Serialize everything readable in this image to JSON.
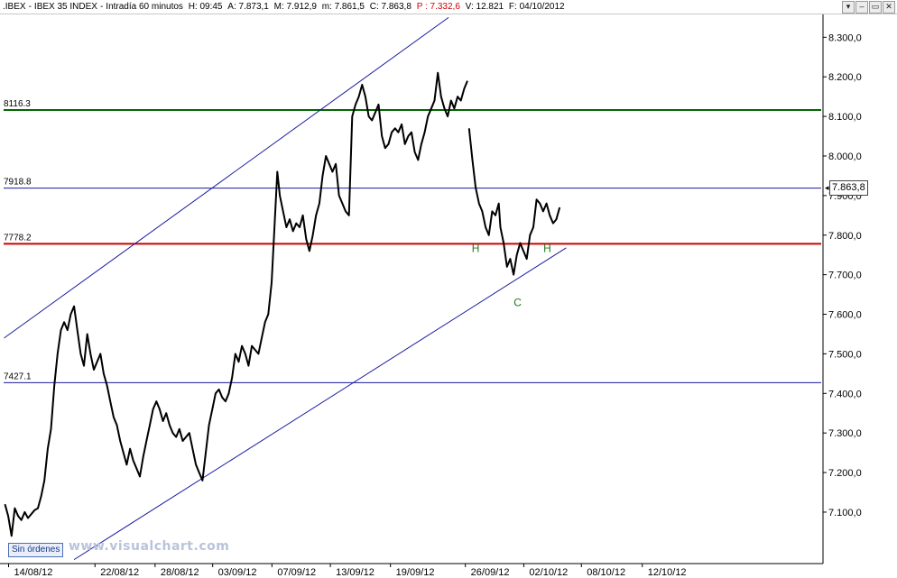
{
  "infobar": {
    "symbol": ".IBEX",
    "sep": "-",
    "name": "IBEX 35 INDEX",
    "sep2": "-",
    "timeframe": "Intradía 60 minutos",
    "hour": "H: 09:45",
    "open": "A: 7.873,1",
    "high": "M: 7.912,9",
    "low": "m: 7.861,5",
    "close": "C: 7.863,8",
    "prev": "P : 7.332,6",
    "volume": "V: 12.821",
    "date": "F: 04/10/2012"
  },
  "window_buttons": [
    "▾",
    "–",
    "▭",
    "✕"
  ],
  "orders_label": "Sin órdenes",
  "watermark": "www.visualchart.com",
  "last_price_label": "7.863,8",
  "colors": {
    "price": "#000000",
    "channel": "#1a1aa0",
    "support_7778": "#cc0000",
    "resistance_8116": "#006600",
    "level_blue": "#1a1aa0",
    "pattern_labels": "#1d7a1d"
  },
  "chart_data": {
    "type": "line",
    "title": "IBEX 35 INDEX - Intradía 60 minutos",
    "xlabel": "",
    "ylabel": "",
    "ylim": [
      6970,
      8360
    ],
    "y_ticks": [
      7100,
      7200,
      7300,
      7400,
      7500,
      7600,
      7700,
      7800,
      7900,
      8000,
      8100,
      8200,
      8300
    ],
    "y_tick_labels": [
      "7.100,0",
      "7.200,0",
      "7.300,0",
      "7.400,0",
      "7.500,0",
      "7.600,0",
      "7.700,0",
      "7.800,0",
      "7.900,0",
      "8.000,0",
      "8.100,0",
      "8.200,0",
      "8.300,0"
    ],
    "x_range": [
      0,
      1000
    ],
    "x_ticks": [
      {
        "label": "14/08/12",
        "x": 17
      },
      {
        "label": "22/08/12",
        "x": 122
      },
      {
        "label": "28/08/12",
        "x": 195
      },
      {
        "label": "03/09/12",
        "x": 265
      },
      {
        "label": "07/09/12",
        "x": 337
      },
      {
        "label": "13/09/12",
        "x": 408
      },
      {
        "label": "19/09/12",
        "x": 481
      },
      {
        "label": "26/09/12",
        "x": 572
      },
      {
        "label": "02/10/12",
        "x": 643
      },
      {
        "label": "08/10/12",
        "x": 713
      },
      {
        "label": "12/10/12",
        "x": 787
      }
    ],
    "horizontal_levels": [
      {
        "value": 8116.3,
        "label": "8116.3",
        "color": "#006600",
        "width": 2
      },
      {
        "value": 7918.8,
        "label": "7918.8",
        "color": "#1a1aa0",
        "width": 1
      },
      {
        "value": 7778.2,
        "label": "7778.2",
        "color": "#cc0000",
        "width": 2
      },
      {
        "value": 7427.1,
        "label": "7427.1",
        "color": "#1a1aa0",
        "width": 1
      }
    ],
    "channel_lines": [
      {
        "name": "upper",
        "points": [
          [
            5,
            7540
          ],
          [
            545,
            8350
          ]
        ]
      },
      {
        "name": "lower",
        "points": [
          [
            90,
            6980
          ],
          [
            688,
            7768
          ]
        ]
      }
    ],
    "annotations": [
      {
        "text": "H",
        "x": 578,
        "y": 7757
      },
      {
        "text": "C",
        "x": 629,
        "y": 7620
      },
      {
        "text": "H",
        "x": 665,
        "y": 7757
      }
    ],
    "series": [
      {
        "values": [
          [
            6,
            7120
          ],
          [
            10,
            7090
          ],
          [
            14,
            7040
          ],
          [
            18,
            7110
          ],
          [
            22,
            7090
          ],
          [
            26,
            7080
          ],
          [
            30,
            7100
          ],
          [
            34,
            7085
          ],
          [
            38,
            7095
          ],
          [
            42,
            7105
          ],
          [
            46,
            7110
          ],
          [
            50,
            7140
          ],
          [
            54,
            7180
          ],
          [
            58,
            7260
          ],
          [
            62,
            7310
          ],
          [
            66,
            7420
          ],
          [
            70,
            7500
          ],
          [
            74,
            7560
          ],
          [
            78,
            7580
          ],
          [
            82,
            7560
          ],
          [
            86,
            7600
          ],
          [
            90,
            7620
          ],
          [
            94,
            7560
          ],
          [
            98,
            7500
          ],
          [
            102,
            7470
          ],
          [
            106,
            7550
          ],
          [
            110,
            7500
          ],
          [
            114,
            7460
          ],
          [
            118,
            7480
          ],
          [
            122,
            7500
          ],
          [
            126,
            7450
          ],
          [
            130,
            7420
          ],
          [
            134,
            7380
          ],
          [
            138,
            7340
          ],
          [
            142,
            7320
          ],
          [
            146,
            7280
          ],
          [
            150,
            7250
          ],
          [
            154,
            7220
          ],
          [
            158,
            7260
          ],
          [
            162,
            7230
          ],
          [
            166,
            7210
          ],
          [
            170,
            7190
          ],
          [
            174,
            7240
          ],
          [
            178,
            7280
          ],
          [
            182,
            7320
          ],
          [
            186,
            7360
          ],
          [
            190,
            7380
          ],
          [
            194,
            7360
          ],
          [
            198,
            7330
          ],
          [
            202,
            7350
          ],
          [
            206,
            7320
          ],
          [
            210,
            7300
          ],
          [
            214,
            7290
          ],
          [
            218,
            7310
          ],
          [
            222,
            7280
          ],
          [
            226,
            7290
          ],
          [
            230,
            7300
          ],
          [
            234,
            7260
          ],
          [
            238,
            7220
          ],
          [
            242,
            7200
          ],
          [
            246,
            7180
          ],
          [
            250,
            7250
          ],
          [
            254,
            7320
          ],
          [
            258,
            7360
          ],
          [
            262,
            7400
          ],
          [
            266,
            7410
          ],
          [
            270,
            7390
          ],
          [
            274,
            7380
          ],
          [
            278,
            7400
          ],
          [
            282,
            7440
          ],
          [
            286,
            7500
          ],
          [
            290,
            7480
          ],
          [
            294,
            7520
          ],
          [
            298,
            7500
          ],
          [
            302,
            7470
          ],
          [
            306,
            7520
          ],
          [
            310,
            7510
          ],
          [
            314,
            7500
          ],
          [
            318,
            7540
          ],
          [
            322,
            7580
          ],
          [
            326,
            7600
          ],
          [
            330,
            7680
          ],
          [
            334,
            7840
          ],
          [
            337,
            7960
          ],
          [
            340,
            7900
          ],
          [
            344,
            7860
          ],
          [
            348,
            7820
          ],
          [
            352,
            7840
          ],
          [
            356,
            7810
          ],
          [
            360,
            7830
          ],
          [
            364,
            7820
          ],
          [
            368,
            7850
          ],
          [
            372,
            7790
          ],
          [
            376,
            7760
          ],
          [
            380,
            7800
          ],
          [
            384,
            7850
          ],
          [
            388,
            7880
          ],
          [
            392,
            7950
          ],
          [
            396,
            8000
          ],
          [
            400,
            7980
          ],
          [
            404,
            7960
          ],
          [
            408,
            7980
          ],
          [
            412,
            7900
          ],
          [
            416,
            7880
          ],
          [
            420,
            7860
          ],
          [
            424,
            7850
          ],
          [
            428,
            8100
          ],
          [
            432,
            8130
          ],
          [
            436,
            8150
          ],
          [
            440,
            8180
          ],
          [
            444,
            8150
          ],
          [
            448,
            8100
          ],
          [
            452,
            8090
          ],
          [
            456,
            8110
          ],
          [
            460,
            8130
          ],
          [
            464,
            8050
          ],
          [
            468,
            8020
          ],
          [
            472,
            8030
          ],
          [
            476,
            8060
          ],
          [
            480,
            8070
          ],
          [
            484,
            8060
          ],
          [
            488,
            8080
          ],
          [
            492,
            8030
          ],
          [
            496,
            8050
          ],
          [
            500,
            8060
          ],
          [
            504,
            8010
          ],
          [
            508,
            7990
          ],
          [
            512,
            8030
          ],
          [
            516,
            8060
          ],
          [
            520,
            8100
          ],
          [
            524,
            8120
          ],
          [
            528,
            8140
          ],
          [
            532,
            8210
          ],
          [
            536,
            8150
          ],
          [
            540,
            8120
          ],
          [
            544,
            8100
          ],
          [
            548,
            8140
          ],
          [
            552,
            8120
          ],
          [
            556,
            8150
          ],
          [
            560,
            8140
          ],
          [
            564,
            8170
          ],
          [
            568,
            8190
          ]
        ]
      },
      {
        "values": [
          [
            570,
            8070
          ],
          [
            574,
            7990
          ],
          [
            578,
            7920
          ],
          [
            582,
            7880
          ],
          [
            586,
            7860
          ],
          [
            590,
            7820
          ],
          [
            594,
            7800
          ],
          [
            598,
            7860
          ],
          [
            602,
            7850
          ],
          [
            606,
            7880
          ],
          [
            608,
            7820
          ],
          [
            612,
            7780
          ],
          [
            616,
            7720
          ],
          [
            620,
            7740
          ],
          [
            624,
            7700
          ],
          [
            628,
            7750
          ],
          [
            632,
            7780
          ],
          [
            636,
            7760
          ],
          [
            640,
            7740
          ],
          [
            644,
            7800
          ],
          [
            648,
            7820
          ],
          [
            652,
            7890
          ],
          [
            656,
            7880
          ],
          [
            660,
            7860
          ],
          [
            664,
            7880
          ],
          [
            668,
            7850
          ],
          [
            672,
            7830
          ],
          [
            676,
            7840
          ],
          [
            680,
            7870
          ]
        ]
      }
    ]
  }
}
